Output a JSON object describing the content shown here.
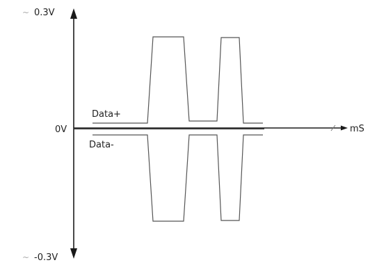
{
  "diagram": {
    "y_axis": {
      "top_label": "0.3V",
      "top_prefix": "~",
      "zero_label": "0V",
      "bottom_label": "-0.3V",
      "bottom_prefix": "~"
    },
    "x_axis": {
      "unit_label": "mS"
    },
    "signals": {
      "data_plus_label": "Data+",
      "data_minus_label": "Data-"
    },
    "colors": {
      "axis": "#1a1a1a",
      "signal": "#555555",
      "tilde": "#aaaaaa"
    }
  }
}
